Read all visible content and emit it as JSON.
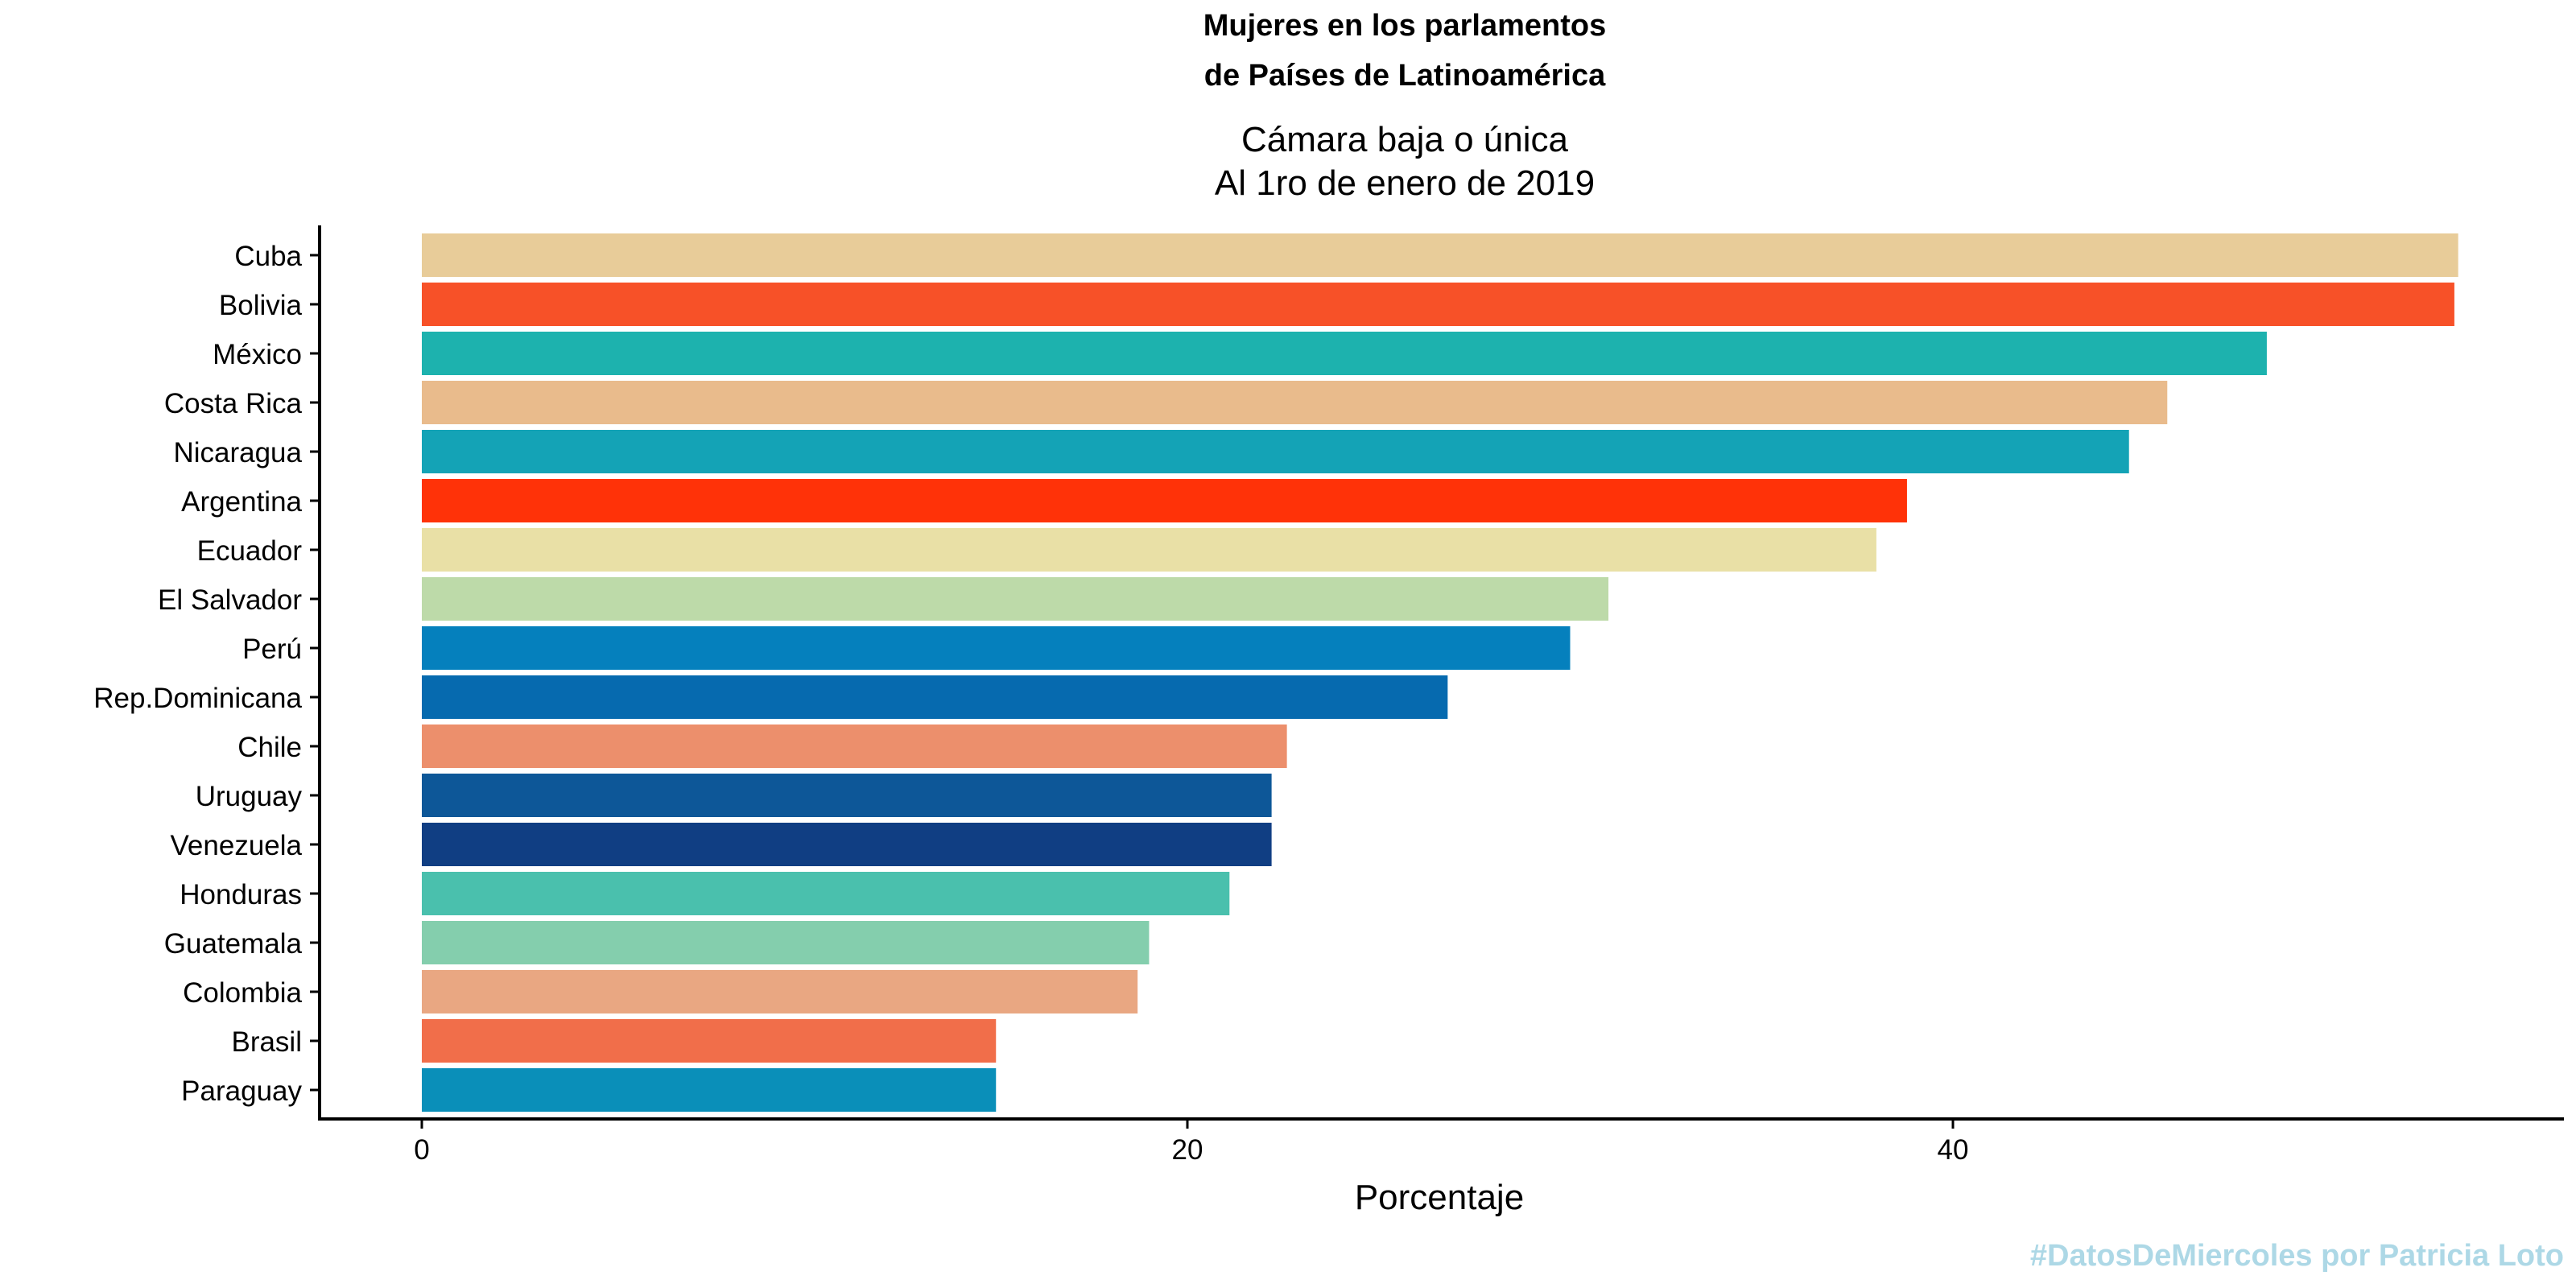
{
  "chart_data": {
    "type": "bar",
    "orientation": "horizontal",
    "title_lines": [
      "Mujeres en los parlamentos",
      "de Países de Latinoamérica"
    ],
    "subtitle_lines": [
      "Cámara baja o única",
      "Al 1ro de enero de 2019"
    ],
    "xlabel": "Porcentaje",
    "ylabel": "",
    "xlim": [
      0,
      55
    ],
    "xticks": [
      0,
      20,
      40
    ],
    "grid": false,
    "legend": "none",
    "categories": [
      "Cuba",
      "Bolivia",
      "México",
      "Costa Rica",
      "Nicaragua",
      "Argentina",
      "Ecuador",
      "El Salvador",
      "Perú",
      "Rep.Dominicana",
      "Chile",
      "Uruguay",
      "Venezuela",
      "Honduras",
      "Guatemala",
      "Colombia",
      "Brasil",
      "Paraguay"
    ],
    "values": [
      53.2,
      53.1,
      48.2,
      45.6,
      44.6,
      38.8,
      38.0,
      31.0,
      30.0,
      26.8,
      22.6,
      22.2,
      22.2,
      21.1,
      19.0,
      18.7,
      15.0,
      15.0
    ],
    "colors": [
      "#E8CC99",
      "#F75128",
      "#1DB2AE",
      "#E9BB8C",
      "#14A3B6",
      "#FF3208",
      "#E9E0A6",
      "#BDDAA9",
      "#0580BD",
      "#066AAF",
      "#EC8F6C",
      "#0D5798",
      "#103E83",
      "#4AC0AD",
      "#84CEAD",
      "#E9A782",
      "#F16E4A",
      "#0A8FB9"
    ],
    "caption": "#DatosDeMiercoles por Patricia Loto",
    "caption_color": "#ADD8E6"
  }
}
